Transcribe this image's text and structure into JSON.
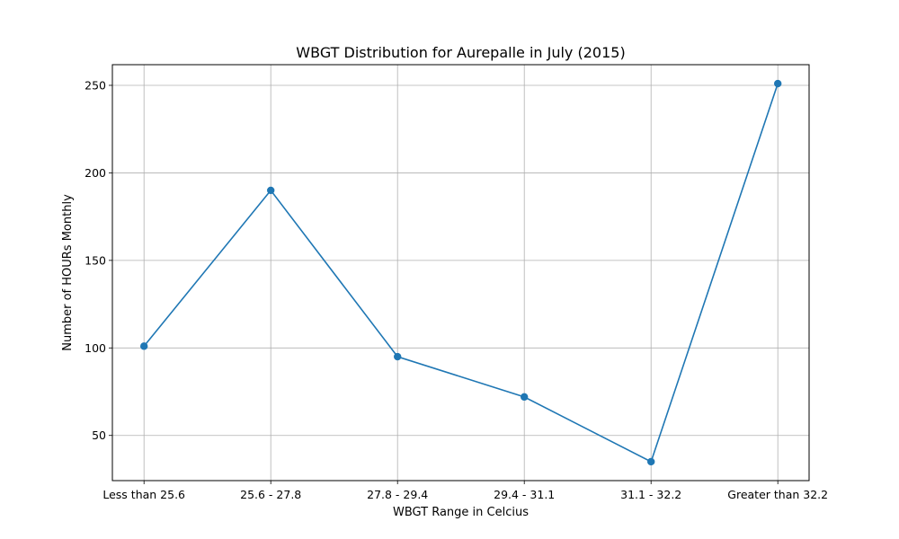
{
  "chart_data": {
    "type": "line",
    "title": "WBGT Distribution for Aurepalle in July (2015)",
    "xlabel": "WBGT Range in Celcius",
    "ylabel": "Number of HOURs Monthly",
    "categories": [
      "Less than 25.6",
      "25.6 - 27.8",
      "27.8 - 29.4",
      "29.4 - 31.1",
      "31.1 - 32.2",
      "Greater than 32.2"
    ],
    "series": [
      {
        "values": [
          101,
          190,
          95,
          72,
          35,
          251
        ]
      }
    ],
    "ylim": [
      24.2,
      261.8
    ],
    "yticks": [
      50,
      100,
      150,
      200,
      250
    ],
    "grid": true,
    "line_color": "#1f77b4",
    "marker": "circle"
  }
}
